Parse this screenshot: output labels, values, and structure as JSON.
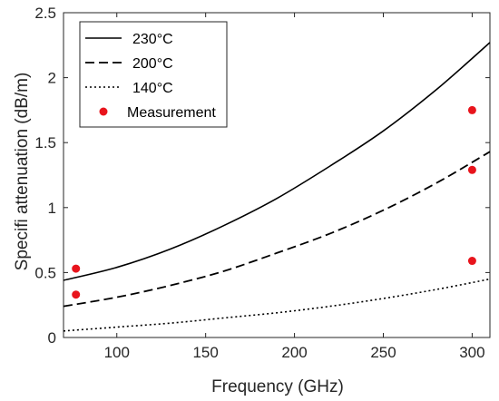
{
  "chart_data": {
    "type": "line",
    "xlabel": "Frequency (GHz)",
    "ylabel": "Specifi attenuation (dB/m)",
    "xlim": [
      70,
      310
    ],
    "ylim": [
      0,
      2.5
    ],
    "xticks": [
      100,
      150,
      200,
      250,
      300
    ],
    "yticks": [
      0,
      0.5,
      1,
      1.5,
      2,
      2.5
    ],
    "ytick_labels": [
      "0",
      "0.5",
      "1",
      "1.5",
      "2",
      "2.5"
    ],
    "grid": false,
    "legend_position": "top-left",
    "series": [
      {
        "name": "230°C",
        "style": "solid",
        "x": [
          70,
          100,
          130,
          160,
          190,
          220,
          250,
          280,
          310
        ],
        "y": [
          0.44,
          0.54,
          0.68,
          0.86,
          1.07,
          1.32,
          1.59,
          1.91,
          2.27
        ]
      },
      {
        "name": "200°C",
        "style": "dashed",
        "x": [
          70,
          100,
          130,
          160,
          190,
          220,
          250,
          280,
          310
        ],
        "y": [
          0.24,
          0.31,
          0.4,
          0.51,
          0.65,
          0.8,
          0.98,
          1.19,
          1.43
        ]
      },
      {
        "name": "140°C",
        "style": "dotted",
        "x": [
          70,
          100,
          130,
          160,
          190,
          220,
          250,
          280,
          310
        ],
        "y": [
          0.05,
          0.08,
          0.11,
          0.15,
          0.19,
          0.24,
          0.3,
          0.37,
          0.45
        ]
      },
      {
        "name": "Measurement",
        "style": "markers",
        "x": [
          77,
          77,
          300,
          300,
          300
        ],
        "y": [
          0.53,
          0.33,
          1.75,
          1.29,
          0.59
        ]
      }
    ]
  },
  "colors": {
    "line": "#000000",
    "marker": "#e8141c",
    "axis": "#262626"
  }
}
